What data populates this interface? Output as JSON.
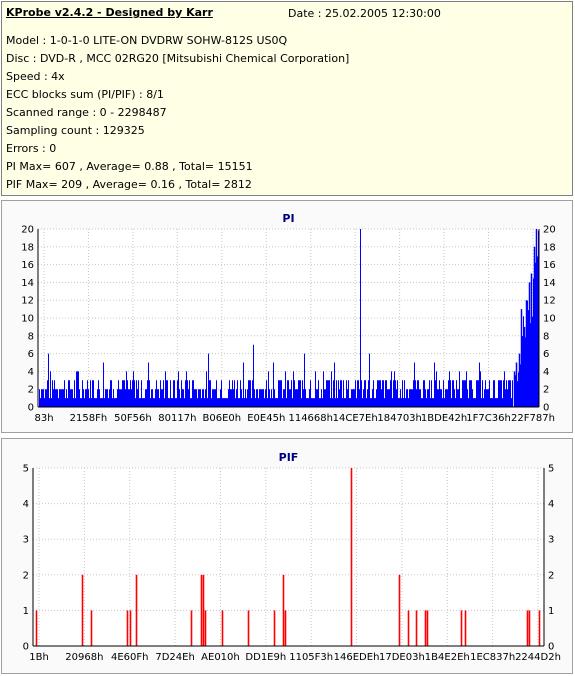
{
  "header": {
    "app_title": "KProbe v2.4.2 - Designed by Karr",
    "date": "Date : 25.02.2005 12:30:00"
  },
  "info_lines": [
    "Model : 1-0-1-0 LITE-ON DVDRW SOHW-812S  US0Q",
    "Disc : DVD-R , MCC 02RG20   [Mitsubishi Chemical Corporation]",
    "Speed : 4x",
    "ECC blocks sum (PI/PIF) : 8/1",
    "Scanned range : 0 - 2298487",
    "Sampling count : 129325",
    "Errors : 0",
    "PI Max= 607 , Average= 0.88 , Total= 15151",
    "PIF Max= 209 , Average= 0.16 , Total= 2812"
  ],
  "chart_data": [
    {
      "type": "bar",
      "title": "PI",
      "color": "#0000ff",
      "ylim": [
        0,
        20
      ],
      "yticks": [
        0,
        2,
        4,
        6,
        8,
        10,
        12,
        14,
        16,
        18,
        20
      ],
      "xticks": [
        "83h",
        "2158Fh",
        "50F56h",
        "80117h",
        "B06E0h",
        "E0E45h",
        "114668h",
        "14CE7Eh",
        "184703h",
        "1BDE42h",
        "1F7C36h",
        "22F787h"
      ],
      "baseline_level": 3,
      "spikes": [
        {
          "x": 0.02,
          "v": 6
        },
        {
          "x": 0.08,
          "v": 4
        },
        {
          "x": 0.13,
          "v": 5
        },
        {
          "x": 0.19,
          "v": 4
        },
        {
          "x": 0.22,
          "v": 5
        },
        {
          "x": 0.28,
          "v": 4
        },
        {
          "x": 0.34,
          "v": 6
        },
        {
          "x": 0.41,
          "v": 5
        },
        {
          "x": 0.43,
          "v": 7
        },
        {
          "x": 0.47,
          "v": 5
        },
        {
          "x": 0.53,
          "v": 6
        },
        {
          "x": 0.59,
          "v": 5
        },
        {
          "x": 0.6435,
          "v": 20
        },
        {
          "x": 0.66,
          "v": 6
        },
        {
          "x": 0.71,
          "v": 4
        },
        {
          "x": 0.75,
          "v": 5
        },
        {
          "x": 0.79,
          "v": 5
        },
        {
          "x": 0.84,
          "v": 4
        },
        {
          "x": 0.88,
          "v": 5
        },
        {
          "x": 0.93,
          "v": 4
        }
      ],
      "tail": [
        {
          "x": 0.95,
          "v": 4
        },
        {
          "x": 0.955,
          "v": 5
        },
        {
          "x": 0.96,
          "v": 6
        },
        {
          "x": 0.965,
          "v": 11
        },
        {
          "x": 0.97,
          "v": 9
        },
        {
          "x": 0.975,
          "v": 12
        },
        {
          "x": 0.98,
          "v": 14
        },
        {
          "x": 0.985,
          "v": 15
        },
        {
          "x": 0.99,
          "v": 18
        },
        {
          "x": 0.995,
          "v": 20
        }
      ]
    },
    {
      "type": "bar",
      "title": "PIF",
      "color": "#ff0000",
      "ylim": [
        0,
        5
      ],
      "yticks": [
        0,
        1,
        2,
        3,
        4,
        5
      ],
      "xticks": [
        "1Bh",
        "20968h",
        "4E60Fh",
        "7D24Eh",
        "AE010h",
        "DD1E9h",
        "1105F3h",
        "146EDEh",
        "17DE03h",
        "1B4E2Eh",
        "1EC837h",
        "2244D2h"
      ],
      "bars": [
        {
          "x": 0.005,
          "v": 1
        },
        {
          "x": 0.096,
          "v": 2
        },
        {
          "x": 0.114,
          "v": 1
        },
        {
          "x": 0.184,
          "v": 1
        },
        {
          "x": 0.19,
          "v": 1
        },
        {
          "x": 0.201,
          "v": 2
        },
        {
          "x": 0.31,
          "v": 1
        },
        {
          "x": 0.328,
          "v": 2
        },
        {
          "x": 0.332,
          "v": 2
        },
        {
          "x": 0.336,
          "v": 1
        },
        {
          "x": 0.369,
          "v": 1
        },
        {
          "x": 0.42,
          "v": 1
        },
        {
          "x": 0.472,
          "v": 1
        },
        {
          "x": 0.49,
          "v": 2
        },
        {
          "x": 0.494,
          "v": 1
        },
        {
          "x": 0.622,
          "v": 5
        },
        {
          "x": 0.716,
          "v": 2
        },
        {
          "x": 0.733,
          "v": 1
        },
        {
          "x": 0.75,
          "v": 1
        },
        {
          "x": 0.768,
          "v": 1
        },
        {
          "x": 0.771,
          "v": 1
        },
        {
          "x": 0.838,
          "v": 1
        },
        {
          "x": 0.846,
          "v": 1
        },
        {
          "x": 0.966,
          "v": 1
        },
        {
          "x": 0.97,
          "v": 1
        },
        {
          "x": 0.99,
          "v": 1
        }
      ]
    }
  ]
}
